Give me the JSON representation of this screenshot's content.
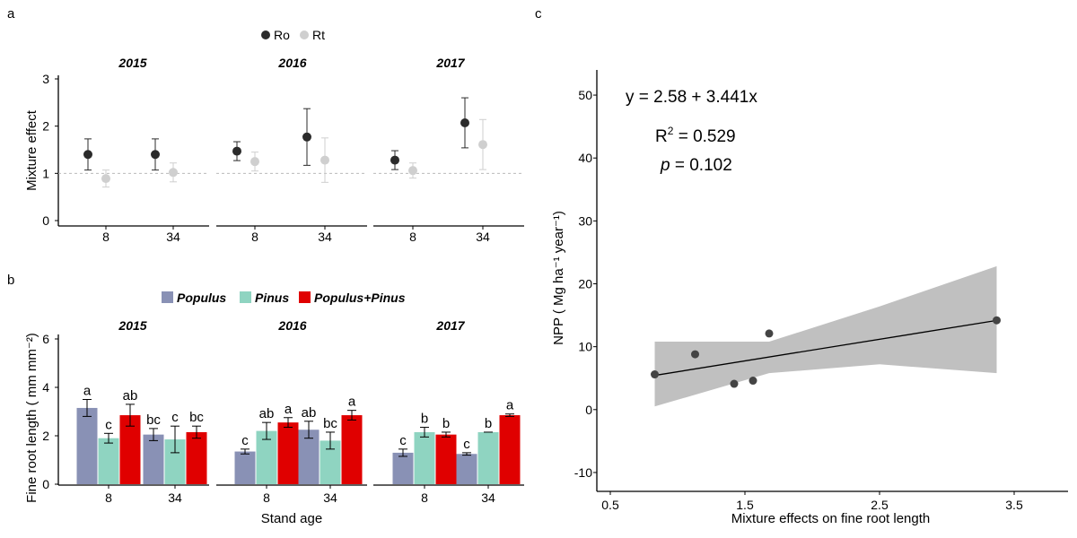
{
  "panels": {
    "a": {
      "letter": "a",
      "legend": [
        {
          "label": "Ro",
          "color": "#2b2b2b"
        },
        {
          "label": "Rt",
          "color": "#cfcfcf"
        }
      ]
    },
    "b": {
      "letter": "b",
      "legend": [
        {
          "label": "Populus",
          "color": "#8991b5"
        },
        {
          "label": "Pinus",
          "color": "#8fd4c1"
        },
        {
          "label": "Populus+Pinus",
          "color": "#e00000"
        }
      ]
    },
    "c": {
      "letter": "c"
    }
  },
  "chart_data": [
    {
      "id": "a",
      "type": "scatter",
      "title": "",
      "xlabel": "",
      "ylabel": "Mixture effect",
      "ylim": [
        0,
        3
      ],
      "yticks": [
        0,
        1,
        2,
        3
      ],
      "reference_line": 1,
      "facets": [
        "2015",
        "2016",
        "2017"
      ],
      "categories": [
        "8",
        "34"
      ],
      "series": [
        {
          "name": "Ro",
          "color": "#2b2b2b",
          "values": [
            [
              1.4,
              1.4
            ],
            [
              1.47,
              1.77
            ],
            [
              1.28,
              2.07
            ]
          ],
          "errors": [
            [
              0.33,
              0.33
            ],
            [
              0.2,
              0.6
            ],
            [
              0.2,
              0.53
            ]
          ]
        },
        {
          "name": "Rt",
          "color": "#cfcfcf",
          "values": [
            [
              0.89,
              1.02
            ],
            [
              1.25,
              1.28
            ],
            [
              1.06,
              1.61
            ]
          ],
          "errors": [
            [
              0.18,
              0.2
            ],
            [
              0.2,
              0.47
            ],
            [
              0.16,
              0.53
            ]
          ]
        }
      ]
    },
    {
      "id": "b",
      "type": "bar",
      "title": "",
      "xlabel": "Stand age",
      "ylabel": "Fine root length ( mm mm⁻²)",
      "ylim": [
        0,
        6
      ],
      "yticks": [
        0,
        2,
        4,
        6
      ],
      "facets": [
        "2015",
        "2016",
        "2017"
      ],
      "categories": [
        "8",
        "34"
      ],
      "series": [
        {
          "name": "Populus",
          "color": "#8991b5",
          "values": [
            [
              3.15,
              2.05
            ],
            [
              1.35,
              2.25
            ],
            [
              1.3,
              1.25
            ]
          ],
          "errors": [
            [
              0.35,
              0.25
            ],
            [
              0.1,
              0.35
            ],
            [
              0.15,
              0.05
            ]
          ],
          "letters": [
            [
              "a",
              "bc"
            ],
            [
              "c",
              "ab"
            ],
            [
              "c",
              "c"
            ]
          ]
        },
        {
          "name": "Pinus",
          "color": "#8fd4c1",
          "values": [
            [
              1.9,
              1.85
            ],
            [
              2.2,
              1.8
            ],
            [
              2.15,
              2.15
            ]
          ],
          "errors": [
            [
              0.2,
              0.55
            ],
            [
              0.35,
              0.35
            ],
            [
              0.2,
              0.0
            ]
          ],
          "letters": [
            [
              "c",
              "c"
            ],
            [
              "ab",
              "bc"
            ],
            [
              "b",
              "b"
            ]
          ]
        },
        {
          "name": "Populus+Pinus",
          "color": "#e00000",
          "values": [
            [
              2.85,
              2.15
            ],
            [
              2.55,
              2.85
            ],
            [
              2.05,
              2.85
            ]
          ],
          "errors": [
            [
              0.45,
              0.25
            ],
            [
              0.2,
              0.2
            ],
            [
              0.1,
              0.05
            ]
          ],
          "letters": [
            [
              "ab",
              "bc"
            ],
            [
              "a",
              "a"
            ],
            [
              "b",
              "a"
            ]
          ]
        }
      ]
    },
    {
      "id": "c",
      "type": "scatter",
      "title": "",
      "xlabel": "Mixture effects on fine root length",
      "ylabel": "NPP ( Mg ha⁻¹ year⁻¹)",
      "xlim": [
        0.4,
        3.9
      ],
      "ylim": [
        -13,
        54
      ],
      "xticks": [
        0.5,
        1.5,
        2.5,
        3.5
      ],
      "yticks": [
        -10,
        0,
        10,
        20,
        30,
        40,
        50
      ],
      "points": {
        "x": [
          0.83,
          1.13,
          1.42,
          1.56,
          1.68,
          3.37
        ],
        "y": [
          5.6,
          8.8,
          4.1,
          4.6,
          12.1,
          14.2
        ]
      },
      "fit": {
        "intercept": 2.58,
        "slope": 3.441,
        "x_range": [
          0.83,
          3.37
        ]
      },
      "confidence_band": {
        "x": [
          0.83,
          1.68,
          2.5,
          3.37
        ],
        "lower": [
          0.5,
          5.8,
          7.2,
          5.8
        ],
        "upper": [
          10.8,
          10.8,
          16.4,
          22.8
        ]
      },
      "annotations": {
        "equation": "y = 2.58 + 3.441x",
        "r_squared_label": "R",
        "r_squared_value": "0.529",
        "p_label": "p",
        "p_value": "0.102"
      }
    }
  ]
}
